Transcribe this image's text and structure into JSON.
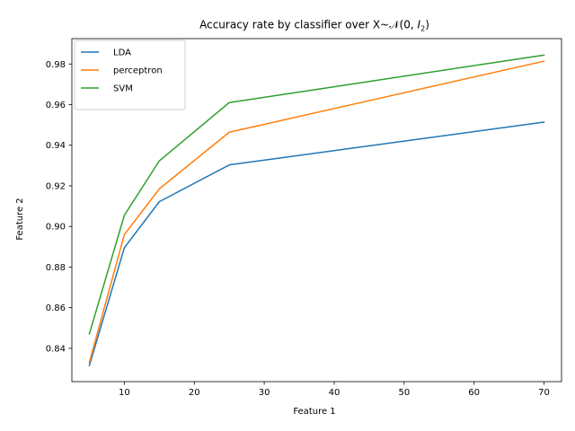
{
  "chart_data": {
    "type": "line",
    "title_prefix": "Accuracy rate by classifier over X~",
    "title_math": "𝒩(0, ",
    "title_math_var": "I",
    "title_math_sub": "2",
    "title_math_close": ")",
    "xlabel": "Feature 1",
    "ylabel": "Feature 2",
    "x": [
      5,
      10,
      15,
      25,
      70
    ],
    "xlim": [
      2.5,
      72.5
    ],
    "ylim": [
      0.8236,
      0.9925
    ],
    "xticks": [
      10,
      20,
      30,
      40,
      50,
      60,
      70
    ],
    "yticks": [
      0.84,
      0.86,
      0.88,
      0.9,
      0.92,
      0.94,
      0.96,
      0.98
    ],
    "xtick_labels": [
      "10",
      "20",
      "30",
      "40",
      "50",
      "60",
      "70"
    ],
    "ytick_labels": [
      "0.84",
      "0.86",
      "0.88",
      "0.90",
      "0.92",
      "0.94",
      "0.96",
      "0.98"
    ],
    "grid": false,
    "legend_position": "upper-left",
    "series": [
      {
        "name": "LDA",
        "color": "#1f77b4",
        "values": [
          0.8315,
          0.8895,
          0.9122,
          0.9303,
          0.9514
        ]
      },
      {
        "name": "perceptron",
        "color": "#ff7f0e",
        "values": [
          0.833,
          0.896,
          0.9185,
          0.9464,
          0.9814
        ]
      },
      {
        "name": "SVM",
        "color": "#2ca02c",
        "values": [
          0.8471,
          0.9055,
          0.9323,
          0.961,
          0.9844
        ]
      }
    ]
  }
}
